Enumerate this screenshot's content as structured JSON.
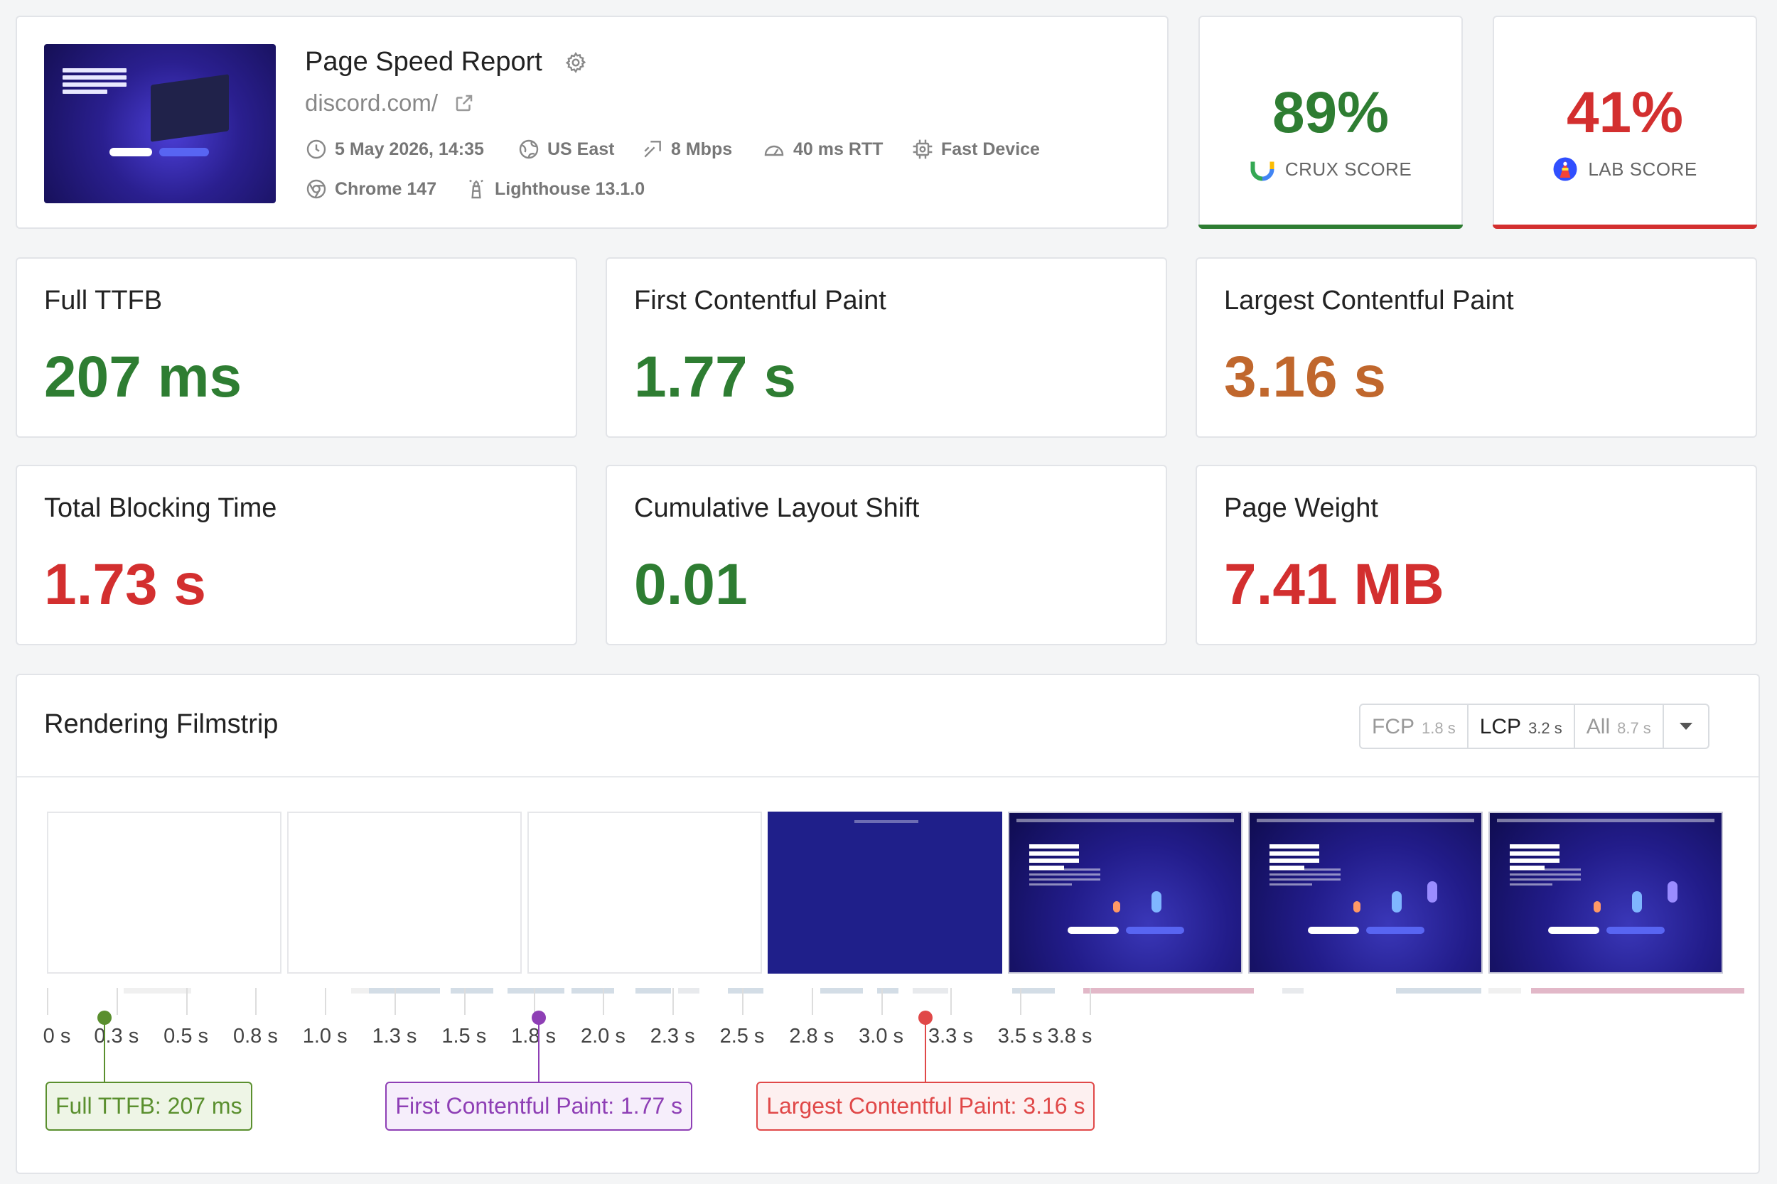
{
  "report": {
    "title": "Page Speed Report",
    "url": "discord.com/",
    "meta": {
      "date": "5 May 2026, 14:35",
      "location": "US East",
      "bandwidth": "8 Mbps",
      "rtt": "40 ms RTT",
      "device": "Fast Device",
      "browser": "Chrome 147",
      "lighthouse": "Lighthouse 13.1.0"
    },
    "thumbnail_text": "GROUP CHAT THAT'S ALL FUN & GAMES"
  },
  "scores": {
    "crux": {
      "value": "89%",
      "label": "CRUX SCORE",
      "color": "#2e7d32"
    },
    "lab": {
      "value": "41%",
      "label": "LAB SCORE",
      "color": "#d32f2f"
    }
  },
  "metrics": [
    {
      "label": "Full TTFB",
      "value": "207 ms",
      "color": "#2e7d32"
    },
    {
      "label": "First Contentful Paint",
      "value": "1.77 s",
      "color": "#2e7d32"
    },
    {
      "label": "Largest Contentful Paint",
      "value": "3.16 s",
      "color": "#c0672d"
    },
    {
      "label": "Total Blocking Time",
      "value": "1.73 s",
      "color": "#d32f2f"
    },
    {
      "label": "Cumulative Layout Shift",
      "value": "0.01",
      "color": "#2e7d32"
    },
    {
      "label": "Page Weight",
      "value": "7.41 MB",
      "color": "#d32f2f"
    }
  ],
  "filmstrip": {
    "title": "Rendering Filmstrip",
    "options": [
      {
        "label": "FCP",
        "time": "1.8 s",
        "active": false
      },
      {
        "label": "LCP",
        "time": "3.2 s",
        "active": true
      },
      {
        "label": "All",
        "time": "8.7 s",
        "active": false
      }
    ],
    "ticks": [
      "0 s",
      "0.3 s",
      "0.5 s",
      "0.8 s",
      "1.0 s",
      "1.3 s",
      "1.5 s",
      "1.8 s",
      "2.0 s",
      "2.3 s",
      "2.5 s",
      "2.8 s",
      "3.0 s",
      "3.3 s",
      "3.5 s",
      "3.8 s"
    ],
    "frames": [
      "blank",
      "blank",
      "blank",
      "blue",
      "site",
      "site",
      "site"
    ],
    "markers": [
      {
        "label": "Full TTFB: 207 ms",
        "time_s": 0.207,
        "color": "#5a8f2e",
        "bg": "#eef5e6",
        "name": "ttfb"
      },
      {
        "label": "First Contentful Paint: 1.77 s",
        "time_s": 1.77,
        "color": "#8e3fb5",
        "bg": "#f6eefb",
        "name": "fcp"
      },
      {
        "label": "Largest Contentful Paint: 3.16 s",
        "time_s": 3.16,
        "color": "#e04848",
        "bg": "#fdf0f0",
        "name": "lcp"
      }
    ]
  }
}
